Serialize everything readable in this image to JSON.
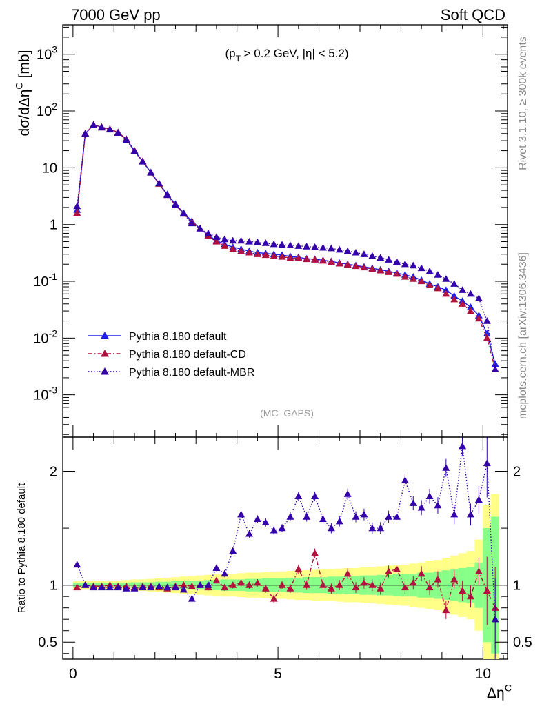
{
  "header": {
    "left_label": "7000 GeV pp",
    "right_label": "Soft QCD"
  },
  "side_labels": {
    "rivet": "Rivet 3.1.10, ≥ 300k events",
    "mcplots": "mcplots.cern.ch [arXiv:1306.3436]"
  },
  "annotations": {
    "cut_label": "(p_T > 0.2 GeV, |η| < 5.2)",
    "analysis": "(MC_GAPS)"
  },
  "colors": {
    "default": "#1f1fe6",
    "cd": "#b0123f",
    "mbr": "#3300aa",
    "band_yellow": "#ffff88",
    "band_green": "#88ff88"
  },
  "chart_data": [
    {
      "type": "line",
      "panel": "main",
      "ylabel": "dσ/dΔη^C [mb]",
      "xlabel": "",
      "yscale": "log",
      "ylim": [
        0.00018,
        3300
      ],
      "xlim": [
        -0.25,
        10.6
      ],
      "yticks": [
        {
          "value": 0.001,
          "label": "10^-3"
        },
        {
          "value": 0.01,
          "label": "10^-2"
        },
        {
          "value": 0.1,
          "label": "10^-1"
        },
        {
          "value": 1,
          "label": "1"
        },
        {
          "value": 10,
          "label": "10"
        },
        {
          "value": 100,
          "label": "10^2"
        },
        {
          "value": 1000,
          "label": "10^3"
        }
      ],
      "legend_position": "lower-left",
      "x": [
        0.1,
        0.3,
        0.5,
        0.7,
        0.9,
        1.1,
        1.3,
        1.5,
        1.7,
        1.9,
        2.1,
        2.3,
        2.5,
        2.7,
        2.9,
        3.1,
        3.3,
        3.5,
        3.7,
        3.9,
        4.1,
        4.3,
        4.5,
        4.7,
        4.9,
        5.1,
        5.3,
        5.5,
        5.7,
        5.9,
        6.1,
        6.3,
        6.5,
        6.7,
        6.9,
        7.1,
        7.3,
        7.5,
        7.7,
        7.9,
        8.1,
        8.3,
        8.5,
        8.7,
        8.9,
        9.1,
        9.3,
        9.5,
        9.7,
        9.9,
        10.1,
        10.3
      ],
      "series": [
        {
          "name": "Pythia 8.180 default",
          "style": "solid",
          "values": [
            1.8,
            40,
            57,
            52,
            48,
            42,
            32,
            20,
            13,
            8.3,
            5.3,
            3.4,
            2.3,
            1.6,
            1.15,
            0.85,
            0.65,
            0.52,
            0.45,
            0.4,
            0.37,
            0.34,
            0.32,
            0.31,
            0.3,
            0.29,
            0.275,
            0.265,
            0.25,
            0.245,
            0.235,
            0.225,
            0.21,
            0.2,
            0.19,
            0.18,
            0.17,
            0.16,
            0.15,
            0.14,
            0.13,
            0.12,
            0.105,
            0.09,
            0.08,
            0.07,
            0.055,
            0.045,
            0.035,
            0.025,
            0.012,
            0.0035
          ]
        },
        {
          "name": "Pythia 8.180 default-CD",
          "style": "dashdot",
          "values": [
            1.6,
            40,
            57,
            52,
            48,
            42,
            32,
            20,
            13,
            8.2,
            5.2,
            3.3,
            2.2,
            1.55,
            1.1,
            0.85,
            0.63,
            0.5,
            0.42,
            0.37,
            0.34,
            0.32,
            0.3,
            0.29,
            0.28,
            0.27,
            0.26,
            0.255,
            0.245,
            0.24,
            0.23,
            0.22,
            0.205,
            0.195,
            0.185,
            0.175,
            0.165,
            0.155,
            0.145,
            0.135,
            0.12,
            0.11,
            0.1,
            0.085,
            0.075,
            0.06,
            0.048,
            0.04,
            0.03,
            0.022,
            0.01,
            0.0028
          ]
        },
        {
          "name": "Pythia 8.180 default-MBR",
          "style": "dotted",
          "values": [
            2.1,
            40,
            57,
            51,
            47,
            41,
            31,
            19.5,
            12.8,
            8.2,
            5.3,
            3.3,
            2.2,
            1.55,
            1.05,
            0.85,
            0.7,
            0.6,
            0.55,
            0.52,
            0.52,
            0.5,
            0.49,
            0.47,
            0.45,
            0.44,
            0.43,
            0.42,
            0.41,
            0.4,
            0.39,
            0.38,
            0.36,
            0.34,
            0.32,
            0.3,
            0.28,
            0.26,
            0.24,
            0.22,
            0.2,
            0.19,
            0.17,
            0.15,
            0.13,
            0.11,
            0.09,
            0.07,
            0.06,
            0.05,
            0.02,
            0.0028
          ]
        }
      ]
    },
    {
      "type": "line",
      "panel": "ratio",
      "ylabel": "Ratio to Pythia 8.180 default",
      "xlabel": "Δη^C",
      "ylim": [
        0.35,
        2.3
      ],
      "xlim": [
        -0.25,
        10.6
      ],
      "yticks": [
        0.5,
        1,
        2
      ],
      "ytick_labels": [
        "0.5",
        "1",
        "2"
      ],
      "xticks": [
        0,
        5,
        10
      ],
      "xtick_labels": [
        "0",
        "5",
        "10"
      ],
      "x": [
        0.1,
        0.3,
        0.5,
        0.7,
        0.9,
        1.1,
        1.3,
        1.5,
        1.7,
        1.9,
        2.1,
        2.3,
        2.5,
        2.7,
        2.9,
        3.1,
        3.3,
        3.5,
        3.7,
        3.9,
        4.1,
        4.3,
        4.5,
        4.7,
        4.9,
        5.1,
        5.3,
        5.5,
        5.7,
        5.9,
        6.1,
        6.3,
        6.5,
        6.7,
        6.9,
        7.1,
        7.3,
        7.5,
        7.7,
        7.9,
        8.1,
        8.3,
        8.5,
        8.7,
        8.9,
        9.1,
        9.3,
        9.5,
        9.7,
        9.9,
        10.1,
        10.3
      ],
      "band_green": [
        0.02,
        0.02,
        0.02,
        0.02,
        0.02,
        0.02,
        0.02,
        0.025,
        0.025,
        0.025,
        0.03,
        0.03,
        0.035,
        0.035,
        0.04,
        0.04,
        0.045,
        0.045,
        0.05,
        0.05,
        0.05,
        0.055,
        0.055,
        0.06,
        0.06,
        0.06,
        0.065,
        0.065,
        0.07,
        0.07,
        0.07,
        0.075,
        0.075,
        0.08,
        0.08,
        0.085,
        0.085,
        0.09,
        0.09,
        0.095,
        0.1,
        0.1,
        0.11,
        0.11,
        0.12,
        0.13,
        0.14,
        0.15,
        0.16,
        0.2,
        0.5,
        0.6
      ],
      "band_yellow": [
        0.04,
        0.04,
        0.04,
        0.04,
        0.04,
        0.04,
        0.045,
        0.05,
        0.05,
        0.055,
        0.06,
        0.065,
        0.07,
        0.075,
        0.08,
        0.085,
        0.09,
        0.095,
        0.1,
        0.1,
        0.105,
        0.11,
        0.11,
        0.115,
        0.12,
        0.12,
        0.125,
        0.13,
        0.13,
        0.135,
        0.14,
        0.14,
        0.145,
        0.15,
        0.15,
        0.155,
        0.16,
        0.165,
        0.17,
        0.175,
        0.18,
        0.19,
        0.2,
        0.21,
        0.22,
        0.24,
        0.26,
        0.28,
        0.3,
        0.4,
        0.7,
        0.8
      ],
      "series": [
        {
          "name": "Pythia 8.180 default-CD",
          "style": "dashdot",
          "values": [
            0.98,
            1.0,
            0.99,
            0.99,
            1.0,
            0.99,
            0.99,
            0.98,
            0.99,
            0.99,
            0.98,
            0.97,
            0.99,
            1.0,
            0.99,
            1.0,
            0.98,
            1.04,
            0.98,
            1.0,
            1.02,
            1.0,
            1.02,
            0.97,
            0.88,
            1.0,
            0.97,
            1.14,
            1.0,
            1.28,
            1.0,
            0.97,
            1.0,
            1.1,
            0.98,
            1.02,
            1.0,
            0.97,
            1.12,
            1.14,
            0.98,
            1.02,
            1.1,
            0.98,
            1.05,
            0.78,
            1.05,
            0.95,
            0.9,
            1.12,
            0.95,
            0.8
          ]
        },
        {
          "name": "Pythia 8.180 default-MBR",
          "style": "dotted",
          "values": [
            1.18,
            1.0,
            0.98,
            0.98,
            0.98,
            0.98,
            0.97,
            0.97,
            0.98,
            0.98,
            0.99,
            0.98,
            0.98,
            0.96,
            0.88,
            1.0,
            1.0,
            1.15,
            1.1,
            1.3,
            1.62,
            1.45,
            1.58,
            1.55,
            1.48,
            1.5,
            1.6,
            1.78,
            1.6,
            1.78,
            1.58,
            1.5,
            1.56,
            1.8,
            1.6,
            1.62,
            1.5,
            1.5,
            1.6,
            1.6,
            1.92,
            1.72,
            1.68,
            1.78,
            1.7,
            2.03,
            1.62,
            2.22,
            1.62,
            1.75,
            2.07,
            0.7
          ]
        }
      ]
    }
  ]
}
